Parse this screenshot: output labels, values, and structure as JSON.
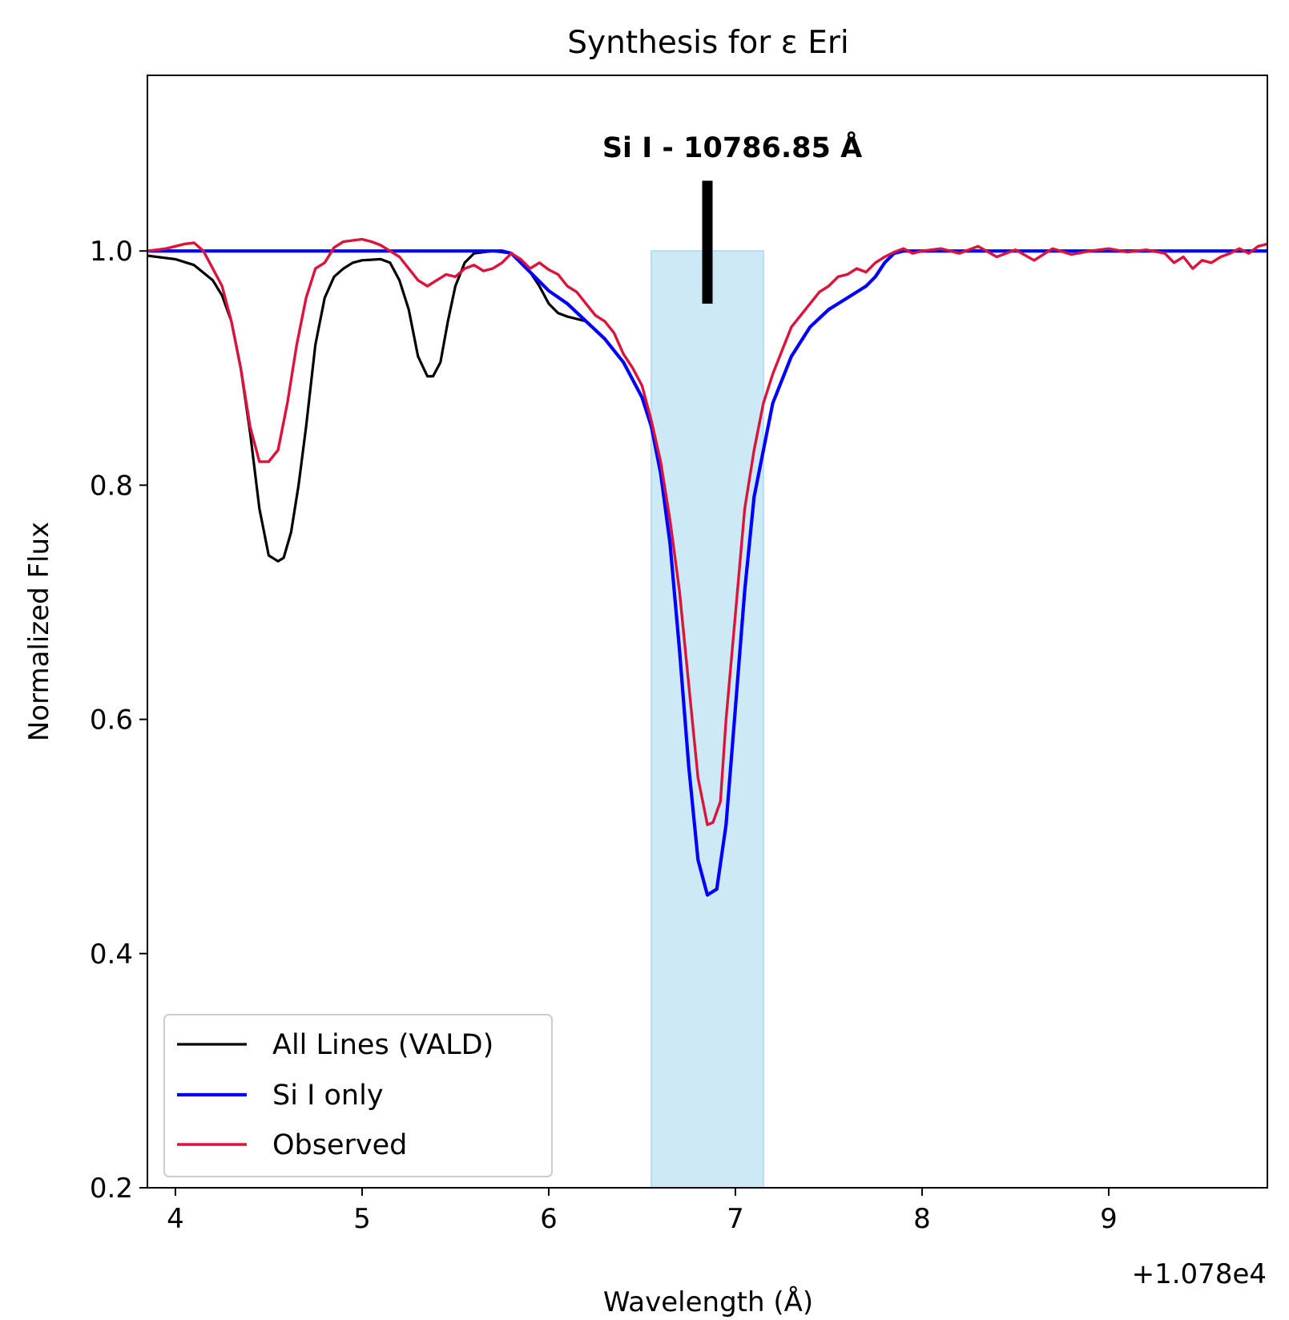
{
  "chart_data": {
    "type": "line",
    "title": "Synthesis for ε Eri",
    "xlabel": "Wavelength (Å)",
    "ylabel": "Normalized Flux",
    "x_offset_label": "+1.078e4",
    "xlim": [
      3.85,
      9.85
    ],
    "ylim": [
      0.2,
      1.15
    ],
    "xticks": [
      4,
      5,
      6,
      7,
      8,
      9
    ],
    "xtick_labels": [
      "4",
      "5",
      "6",
      "7",
      "8",
      "9"
    ],
    "yticks": [
      0.2,
      0.4,
      0.6,
      0.8,
      1.0
    ],
    "ytick_labels": [
      "0.2",
      "0.4",
      "0.6",
      "0.8",
      "1.0"
    ],
    "grid": false,
    "legend_position": "lower-left",
    "highlight_band": {
      "x_from": 6.55,
      "x_to": 7.15,
      "y_from": 0.2,
      "y_to": 1.0,
      "color": "#cde9f6"
    },
    "annotation": {
      "text": "Si I - 10786.85 Å",
      "x": 6.85,
      "marker_y_from": 0.955,
      "marker_y_to": 1.06
    },
    "series": [
      {
        "name": "All Lines (VALD)",
        "color": "#000000",
        "x": [
          3.85,
          4.0,
          4.1,
          4.2,
          4.25,
          4.3,
          4.35,
          4.4,
          4.45,
          4.5,
          4.55,
          4.58,
          4.62,
          4.66,
          4.7,
          4.75,
          4.8,
          4.85,
          4.9,
          4.95,
          5.0,
          5.1,
          5.15,
          5.2,
          5.25,
          5.3,
          5.35,
          5.38,
          5.42,
          5.46,
          5.5,
          5.55,
          5.6,
          5.7,
          5.8,
          5.85,
          5.9,
          5.95,
          6.0,
          6.05,
          6.1,
          6.2,
          6.3,
          6.4,
          6.5,
          6.55,
          6.6,
          6.65,
          6.7,
          6.75,
          6.8,
          6.85,
          6.9,
          6.95,
          7.0,
          7.05,
          7.1,
          7.2,
          7.3,
          7.4,
          7.5,
          7.6,
          7.7,
          7.75,
          7.8,
          7.85,
          7.9,
          8.0,
          8.5,
          9.0,
          9.5,
          9.85
        ],
        "y": [
          0.996,
          0.993,
          0.988,
          0.975,
          0.962,
          0.94,
          0.9,
          0.845,
          0.78,
          0.74,
          0.735,
          0.738,
          0.76,
          0.8,
          0.85,
          0.92,
          0.96,
          0.978,
          0.985,
          0.99,
          0.992,
          0.993,
          0.99,
          0.975,
          0.95,
          0.91,
          0.893,
          0.893,
          0.905,
          0.94,
          0.97,
          0.99,
          0.998,
          1.0,
          0.998,
          0.992,
          0.982,
          0.97,
          0.955,
          0.947,
          0.944,
          0.94,
          0.925,
          0.905,
          0.875,
          0.85,
          0.81,
          0.75,
          0.66,
          0.56,
          0.48,
          0.45,
          0.455,
          0.51,
          0.61,
          0.71,
          0.79,
          0.87,
          0.91,
          0.935,
          0.95,
          0.96,
          0.97,
          0.978,
          0.99,
          0.998,
          1.0,
          1.0,
          1.0,
          1.0,
          1.0,
          1.0
        ]
      },
      {
        "name": "Si I only",
        "color": "#0000ff",
        "x": [
          3.85,
          5.7,
          5.75,
          5.8,
          5.85,
          5.9,
          5.95,
          6.0,
          6.1,
          6.2,
          6.3,
          6.4,
          6.5,
          6.55,
          6.6,
          6.65,
          6.7,
          6.75,
          6.8,
          6.85,
          6.9,
          6.95,
          7.0,
          7.05,
          7.1,
          7.2,
          7.3,
          7.4,
          7.5,
          7.6,
          7.7,
          7.75,
          7.8,
          7.85,
          7.9,
          8.0,
          8.5,
          9.0,
          9.5,
          9.85
        ],
        "y": [
          1.0,
          1.0,
          1.0,
          0.998,
          0.99,
          0.982,
          0.974,
          0.966,
          0.955,
          0.94,
          0.925,
          0.905,
          0.875,
          0.85,
          0.81,
          0.75,
          0.66,
          0.56,
          0.48,
          0.45,
          0.455,
          0.51,
          0.61,
          0.71,
          0.79,
          0.87,
          0.91,
          0.935,
          0.95,
          0.96,
          0.97,
          0.978,
          0.99,
          0.998,
          1.0,
          1.0,
          1.0,
          1.0,
          1.0,
          1.0
        ]
      },
      {
        "name": "Observed",
        "color": "#dc143c",
        "x": [
          3.85,
          3.95,
          4.0,
          4.05,
          4.1,
          4.15,
          4.2,
          4.25,
          4.3,
          4.35,
          4.4,
          4.45,
          4.5,
          4.55,
          4.6,
          4.65,
          4.7,
          4.75,
          4.8,
          4.85,
          4.9,
          4.95,
          5.0,
          5.05,
          5.1,
          5.15,
          5.2,
          5.25,
          5.3,
          5.35,
          5.4,
          5.45,
          5.5,
          5.55,
          5.6,
          5.65,
          5.7,
          5.75,
          5.8,
          5.85,
          5.9,
          5.95,
          6.0,
          6.05,
          6.1,
          6.15,
          6.2,
          6.25,
          6.3,
          6.35,
          6.4,
          6.45,
          6.5,
          6.55,
          6.6,
          6.65,
          6.7,
          6.75,
          6.8,
          6.85,
          6.88,
          6.92,
          6.95,
          7.0,
          7.05,
          7.1,
          7.15,
          7.2,
          7.25,
          7.3,
          7.35,
          7.4,
          7.45,
          7.5,
          7.55,
          7.6,
          7.65,
          7.7,
          7.75,
          7.8,
          7.85,
          7.9,
          7.95,
          8.0,
          8.1,
          8.2,
          8.3,
          8.4,
          8.5,
          8.6,
          8.7,
          8.8,
          8.9,
          9.0,
          9.1,
          9.2,
          9.3,
          9.35,
          9.4,
          9.45,
          9.5,
          9.55,
          9.6,
          9.65,
          9.7,
          9.75,
          9.8,
          9.85
        ],
        "y": [
          1.0,
          1.002,
          1.004,
          1.006,
          1.007,
          1.0,
          0.985,
          0.97,
          0.94,
          0.9,
          0.85,
          0.82,
          0.82,
          0.83,
          0.87,
          0.92,
          0.96,
          0.985,
          0.99,
          1.003,
          1.008,
          1.009,
          1.01,
          1.008,
          1.005,
          1.0,
          0.995,
          0.985,
          0.975,
          0.97,
          0.975,
          0.98,
          0.978,
          0.985,
          0.988,
          0.983,
          0.985,
          0.99,
          0.998,
          0.993,
          0.985,
          0.99,
          0.984,
          0.98,
          0.97,
          0.965,
          0.955,
          0.945,
          0.94,
          0.93,
          0.912,
          0.9,
          0.885,
          0.855,
          0.82,
          0.77,
          0.71,
          0.63,
          0.55,
          0.51,
          0.512,
          0.53,
          0.6,
          0.69,
          0.78,
          0.83,
          0.87,
          0.895,
          0.915,
          0.935,
          0.945,
          0.955,
          0.965,
          0.97,
          0.978,
          0.98,
          0.985,
          0.982,
          0.99,
          0.995,
          0.999,
          1.002,
          0.998,
          1.0,
          1.002,
          0.998,
          1.004,
          0.995,
          1.001,
          0.992,
          1.002,
          0.997,
          1.0,
          1.002,
          0.999,
          1.001,
          0.998,
          0.99,
          0.995,
          0.985,
          0.992,
          0.99,
          0.995,
          0.998,
          1.002,
          0.998,
          1.004,
          1.006
        ]
      }
    ]
  }
}
